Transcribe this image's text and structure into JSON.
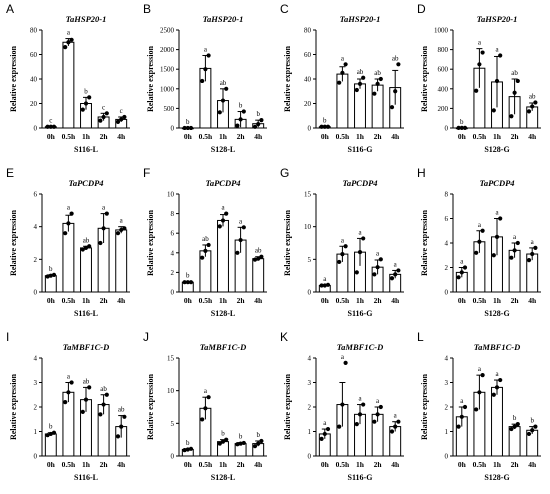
{
  "figure": {
    "ylabel": "Relative expression",
    "timepoints": [
      "0h",
      "0.5h",
      "1h",
      "2h",
      "4h"
    ]
  },
  "chart_data": [
    {
      "panel": "A",
      "type": "bar",
      "title": "TaHSP20-1",
      "xlabel": "S116-L",
      "ylabel": "Relative expression",
      "categories": [
        "0h",
        "0.5h",
        "1h",
        "2h",
        "4h"
      ],
      "values": [
        1,
        70,
        20,
        9,
        7
      ],
      "errors": [
        0.3,
        3,
        5,
        3,
        2
      ],
      "points": [
        [
          1,
          1,
          1
        ],
        [
          66,
          70,
          72
        ],
        [
          15,
          20,
          25
        ],
        [
          6,
          9,
          12
        ],
        [
          5,
          7,
          9
        ]
      ],
      "sig": [
        "c",
        "a",
        "b",
        "c",
        "c"
      ],
      "ylim": [
        0,
        80
      ],
      "yticks": [
        0,
        20,
        40,
        60,
        80
      ]
    },
    {
      "panel": "B",
      "type": "bar",
      "title": "TaHSP20-1",
      "xlabel": "S128-L",
      "ylabel": "Relative expression",
      "categories": [
        "0h",
        "0.5h",
        "1h",
        "2h",
        "4h"
      ],
      "values": [
        1,
        1520,
        700,
        220,
        110
      ],
      "errors": [
        0.5,
        330,
        300,
        200,
        90
      ],
      "points": [
        [
          1,
          1,
          1
        ],
        [
          1200,
          1500,
          1850
        ],
        [
          400,
          700,
          1000
        ],
        [
          60,
          220,
          420
        ],
        [
          30,
          100,
          200
        ]
      ],
      "sig": [
        "b",
        "a",
        "ab",
        "b",
        "b"
      ],
      "ylim": [
        0,
        2500
      ],
      "yticks": [
        0,
        500,
        1000,
        1500,
        2000,
        2500
      ]
    },
    {
      "panel": "C",
      "type": "bar",
      "title": "TaHSP20-1",
      "xlabel": "S116-G",
      "ylabel": "Relative expression",
      "categories": [
        "0h",
        "0.5h",
        "1h",
        "2h",
        "4h"
      ],
      "values": [
        1,
        44,
        36,
        35,
        33
      ],
      "errors": [
        0.3,
        6,
        4,
        5,
        14
      ],
      "points": [
        [
          1,
          1,
          1
        ],
        [
          37,
          45,
          52
        ],
        [
          31,
          36,
          41
        ],
        [
          28,
          36,
          40
        ],
        [
          17,
          30,
          52
        ]
      ],
      "sig": [
        "b",
        "a",
        "ab",
        "ab",
        "ab"
      ],
      "ylim": [
        0,
        80
      ],
      "yticks": [
        0,
        20,
        40,
        60,
        80
      ]
    },
    {
      "panel": "D",
      "type": "bar",
      "title": "TaHSP20-1",
      "xlabel": "S128-G",
      "ylabel": "Relative expression",
      "categories": [
        "0h",
        "0.5h",
        "1h",
        "2h",
        "4h"
      ],
      "values": [
        1,
        610,
        470,
        320,
        215
      ],
      "errors": [
        0.5,
        200,
        260,
        180,
        40
      ],
      "points": [
        [
          1,
          1,
          1
        ],
        [
          380,
          650,
          770
        ],
        [
          180,
          480,
          740
        ],
        [
          120,
          360,
          480
        ],
        [
          170,
          220,
          260
        ]
      ],
      "sig": [
        "b",
        "a",
        "a",
        "ab",
        "ab"
      ],
      "ylim": [
        0,
        1000
      ],
      "yticks": [
        0,
        200,
        400,
        600,
        800,
        1000
      ]
    },
    {
      "panel": "E",
      "type": "bar",
      "title": "TaPCDP4",
      "xlabel": "S116-L",
      "ylabel": "Relative expression",
      "categories": [
        "0h",
        "0.5h",
        "1h",
        "2h",
        "4h"
      ],
      "values": [
        1,
        4.2,
        2.7,
        3.9,
        3.8
      ],
      "errors": [
        0.05,
        0.5,
        0.1,
        0.9,
        0.2
      ],
      "points": [
        [
          0.95,
          1,
          1.05
        ],
        [
          3.6,
          4.2,
          4.8
        ],
        [
          2.6,
          2.7,
          2.8
        ],
        [
          3.0,
          3.9,
          4.8
        ],
        [
          3.6,
          3.8,
          3.9
        ]
      ],
      "sig": [
        "b",
        "a",
        "ab",
        "a",
        "a"
      ],
      "ylim": [
        0,
        6
      ],
      "yticks": [
        0,
        2,
        4,
        6
      ]
    },
    {
      "panel": "F",
      "type": "bar",
      "title": "TaPCDP4",
      "xlabel": "S128-L",
      "ylabel": "Relative expression",
      "categories": [
        "0h",
        "0.5h",
        "1h",
        "2h",
        "4h"
      ],
      "values": [
        1,
        4.2,
        7.3,
        5.3,
        3.4
      ],
      "errors": [
        0.05,
        0.6,
        0.6,
        1.3,
        0.2
      ],
      "points": [
        [
          1,
          1,
          1
        ],
        [
          3.5,
          4.2,
          4.8
        ],
        [
          6.7,
          7.3,
          8.0
        ],
        [
          4.0,
          5.3,
          6.6
        ],
        [
          3.3,
          3.4,
          3.6
        ]
      ],
      "sig": [
        "b",
        "ab",
        "a",
        "a",
        "ab"
      ],
      "ylim": [
        0,
        10
      ],
      "yticks": [
        0,
        2,
        4,
        6,
        8,
        10
      ]
    },
    {
      "panel": "G",
      "type": "bar",
      "title": "TaPCDP4",
      "xlabel": "S116-G",
      "ylabel": "Relative expression",
      "categories": [
        "0h",
        "0.5h",
        "1h",
        "2h",
        "4h"
      ],
      "values": [
        1,
        5.8,
        6.1,
        3.8,
        2.7
      ],
      "errors": [
        0.1,
        1.2,
        2.1,
        1.1,
        0.6
      ],
      "points": [
        [
          1,
          1,
          1.1
        ],
        [
          4.6,
          5.8,
          7.0
        ],
        [
          3.0,
          6.1,
          8.2
        ],
        [
          2.7,
          3.8,
          5.0
        ],
        [
          2.1,
          2.7,
          3.3
        ]
      ],
      "sig": [
        "a",
        "a",
        "a",
        "a",
        "a"
      ],
      "ylim": [
        0,
        15
      ],
      "yticks": [
        0,
        5,
        10,
        15
      ]
    },
    {
      "panel": "H",
      "type": "bar",
      "title": "TaPCDP4",
      "xlabel": "S128-G",
      "ylabel": "Relative expression",
      "categories": [
        "0h",
        "0.5h",
        "1h",
        "2h",
        "4h"
      ],
      "values": [
        1.6,
        4.1,
        4.5,
        3.4,
        3.1
      ],
      "errors": [
        0.4,
        0.9,
        1.5,
        0.6,
        0.5
      ],
      "points": [
        [
          1.2,
          1.6,
          2.0
        ],
        [
          3.2,
          4.1,
          5.0
        ],
        [
          3.0,
          4.5,
          6.0
        ],
        [
          2.8,
          3.4,
          4.0
        ],
        [
          2.6,
          3.1,
          3.6
        ]
      ],
      "sig": [
        "a",
        "a",
        "a",
        "a",
        "a"
      ],
      "ylim": [
        0,
        8
      ],
      "yticks": [
        0,
        2,
        4,
        6,
        8
      ]
    },
    {
      "panel": "I",
      "type": "bar",
      "title": "TaMBF1C-D",
      "xlabel": "S116-L",
      "ylabel": "Relative expression",
      "categories": [
        "0h",
        "0.5h",
        "1h",
        "2h",
        "4h"
      ],
      "values": [
        0.9,
        2.6,
        2.3,
        2.1,
        1.2
      ],
      "errors": [
        0.05,
        0.4,
        0.5,
        0.4,
        0.45
      ],
      "points": [
        [
          0.85,
          0.9,
          0.95
        ],
        [
          2.2,
          2.6,
          3.0
        ],
        [
          1.8,
          2.3,
          2.8
        ],
        [
          1.7,
          2.1,
          2.5
        ],
        [
          0.8,
          1.2,
          1.6
        ]
      ],
      "sig": [
        "b",
        "a",
        "ab",
        "ab",
        "ab"
      ],
      "ylim": [
        0,
        4
      ],
      "yticks": [
        0,
        1,
        2,
        3,
        4
      ]
    },
    {
      "panel": "J",
      "type": "bar",
      "title": "TaMBF1C-D",
      "xlabel": "S128-L",
      "ylabel": "Relative expression",
      "categories": [
        "0h",
        "0.5h",
        "1h",
        "2h",
        "4h"
      ],
      "values": [
        1,
        7.3,
        2.2,
        1.9,
        1.9
      ],
      "errors": [
        0.1,
        1.7,
        0.3,
        0.15,
        0.4
      ],
      "points": [
        [
          0.9,
          1,
          1.1
        ],
        [
          5.6,
          7.3,
          9.0
        ],
        [
          1.9,
          2.2,
          2.5
        ],
        [
          1.8,
          1.9,
          2.0
        ],
        [
          1.5,
          1.9,
          2.3
        ]
      ],
      "sig": [
        "b",
        "a",
        "b",
        "b",
        "b"
      ],
      "ylim": [
        0,
        15
      ],
      "yticks": [
        0,
        5,
        10,
        15
      ]
    },
    {
      "panel": "K",
      "type": "bar",
      "title": "TaMBF1C-D",
      "xlabel": "S116-G",
      "ylabel": "Relative expression",
      "categories": [
        "0h",
        "0.5h",
        "1h",
        "2h",
        "4h"
      ],
      "values": [
        0.9,
        2.1,
        1.7,
        1.7,
        1.2
      ],
      "errors": [
        0.2,
        0.9,
        0.4,
        0.3,
        0.2
      ],
      "points": [
        [
          0.7,
          0.9,
          1.1
        ],
        [
          1.2,
          2.1,
          3.8
        ],
        [
          1.3,
          1.7,
          2.1
        ],
        [
          1.4,
          1.7,
          2.0
        ],
        [
          1.0,
          1.2,
          1.4
        ]
      ],
      "sig": [
        "a",
        "a",
        "a",
        "a",
        "a"
      ],
      "ylim": [
        0,
        4
      ],
      "yticks": [
        0,
        1,
        2,
        3,
        4
      ]
    },
    {
      "panel": "L",
      "type": "bar",
      "title": "TaMBF1C-D",
      "xlabel": "S128-G",
      "ylabel": "Relative expression",
      "categories": [
        "0h",
        "0.5h",
        "1h",
        "2h",
        "4h"
      ],
      "values": [
        1.6,
        2.6,
        2.8,
        1.2,
        1.05
      ],
      "errors": [
        0.4,
        0.7,
        0.3,
        0.1,
        0.15
      ],
      "points": [
        [
          1.2,
          1.6,
          2.0
        ],
        [
          1.9,
          2.6,
          3.3
        ],
        [
          2.5,
          2.8,
          3.1
        ],
        [
          1.1,
          1.2,
          1.3
        ],
        [
          0.9,
          1.05,
          1.2
        ]
      ],
      "sig": [
        "a",
        "a",
        "a",
        "b",
        "b"
      ],
      "ylim": [
        0,
        4
      ],
      "yticks": [
        0,
        1,
        2,
        3,
        4
      ]
    }
  ]
}
